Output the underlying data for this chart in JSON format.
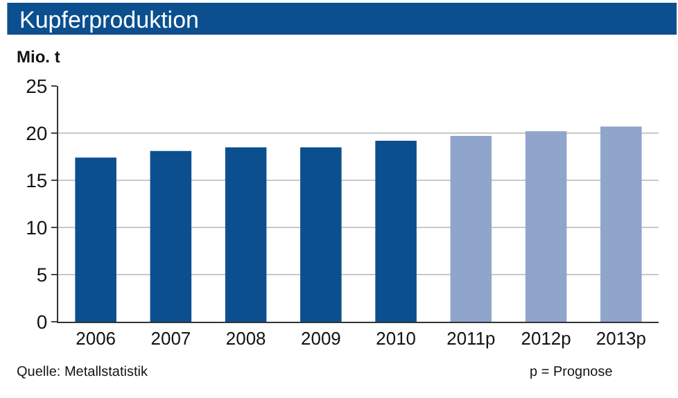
{
  "chart_data": {
    "type": "bar",
    "title": "Kupferproduktion",
    "ylabel": "Mio. t",
    "categories": [
      "2006",
      "2007",
      "2008",
      "2009",
      "2010",
      "2011p",
      "2012p",
      "2013p"
    ],
    "values": [
      17.4,
      18.1,
      18.5,
      18.5,
      19.2,
      19.7,
      20.2,
      20.7
    ],
    "colors": [
      "#0b4f8f",
      "#0b4f8f",
      "#0b4f8f",
      "#0b4f8f",
      "#0b4f8f",
      "#8fa5cc",
      "#8fa5cc",
      "#8fa5cc"
    ],
    "ylim": [
      0,
      25
    ],
    "yticks": [
      0,
      5,
      10,
      15,
      20,
      25
    ],
    "grid": "y",
    "annotations": [
      "Quelle: Metallstatistik",
      "p = Prognose"
    ]
  }
}
